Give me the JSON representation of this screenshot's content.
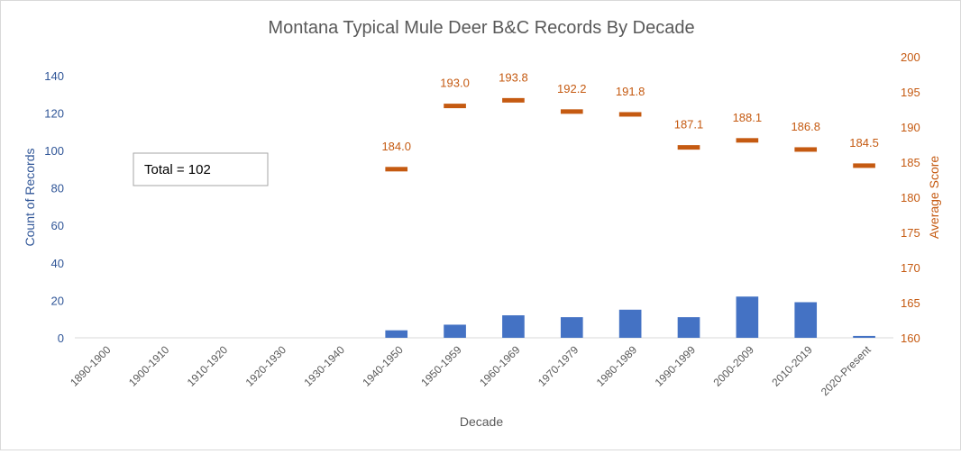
{
  "chart_data": {
    "type": "bar",
    "title": "Montana Typical Mule Deer B&C Records By Decade",
    "xlabel": "Decade",
    "ylabel": "Count of Records",
    "y2label": "Average Score",
    "ylim": [
      0,
      150
    ],
    "y2lim": [
      160,
      200
    ],
    "yticks": [
      0,
      20,
      40,
      60,
      80,
      100,
      120,
      140
    ],
    "y2ticks": [
      160,
      165,
      170,
      175,
      180,
      185,
      190,
      195,
      200
    ],
    "categories": [
      "1890-1900",
      "1900-1910",
      "1910-1920",
      "1920-1930",
      "1930-1940",
      "1940-1950",
      "1950-1959",
      "1960-1969",
      "1970-1979",
      "1980-1989",
      "1990-1999",
      "2000-2009",
      "2010-2019",
      "2020-Present"
    ],
    "series": [
      {
        "type": "bar",
        "axis": "left",
        "color": "#4472c4",
        "values": [
          0,
          0,
          0,
          0,
          0,
          4,
          7,
          12,
          11,
          15,
          11,
          22,
          19,
          1
        ]
      },
      {
        "type": "marker",
        "axis": "right",
        "color": "#c55a11",
        "values": [
          null,
          null,
          null,
          null,
          null,
          184.0,
          193.0,
          193.8,
          192.2,
          191.8,
          187.1,
          188.1,
          186.8,
          184.5
        ],
        "labels": [
          "",
          "",
          "",
          "",
          "",
          "184.0",
          "193.0",
          "193.8",
          "192.2",
          "191.8",
          "187.1",
          "188.1",
          "186.8",
          "184.5"
        ]
      }
    ],
    "annotation": "Total = 102",
    "grid": false,
    "legend": "none"
  },
  "colors": {
    "left_axis_text": "#2f5597",
    "right_axis_text": "#c55a11",
    "title_text": "#595959",
    "tick_text": "#595959"
  }
}
